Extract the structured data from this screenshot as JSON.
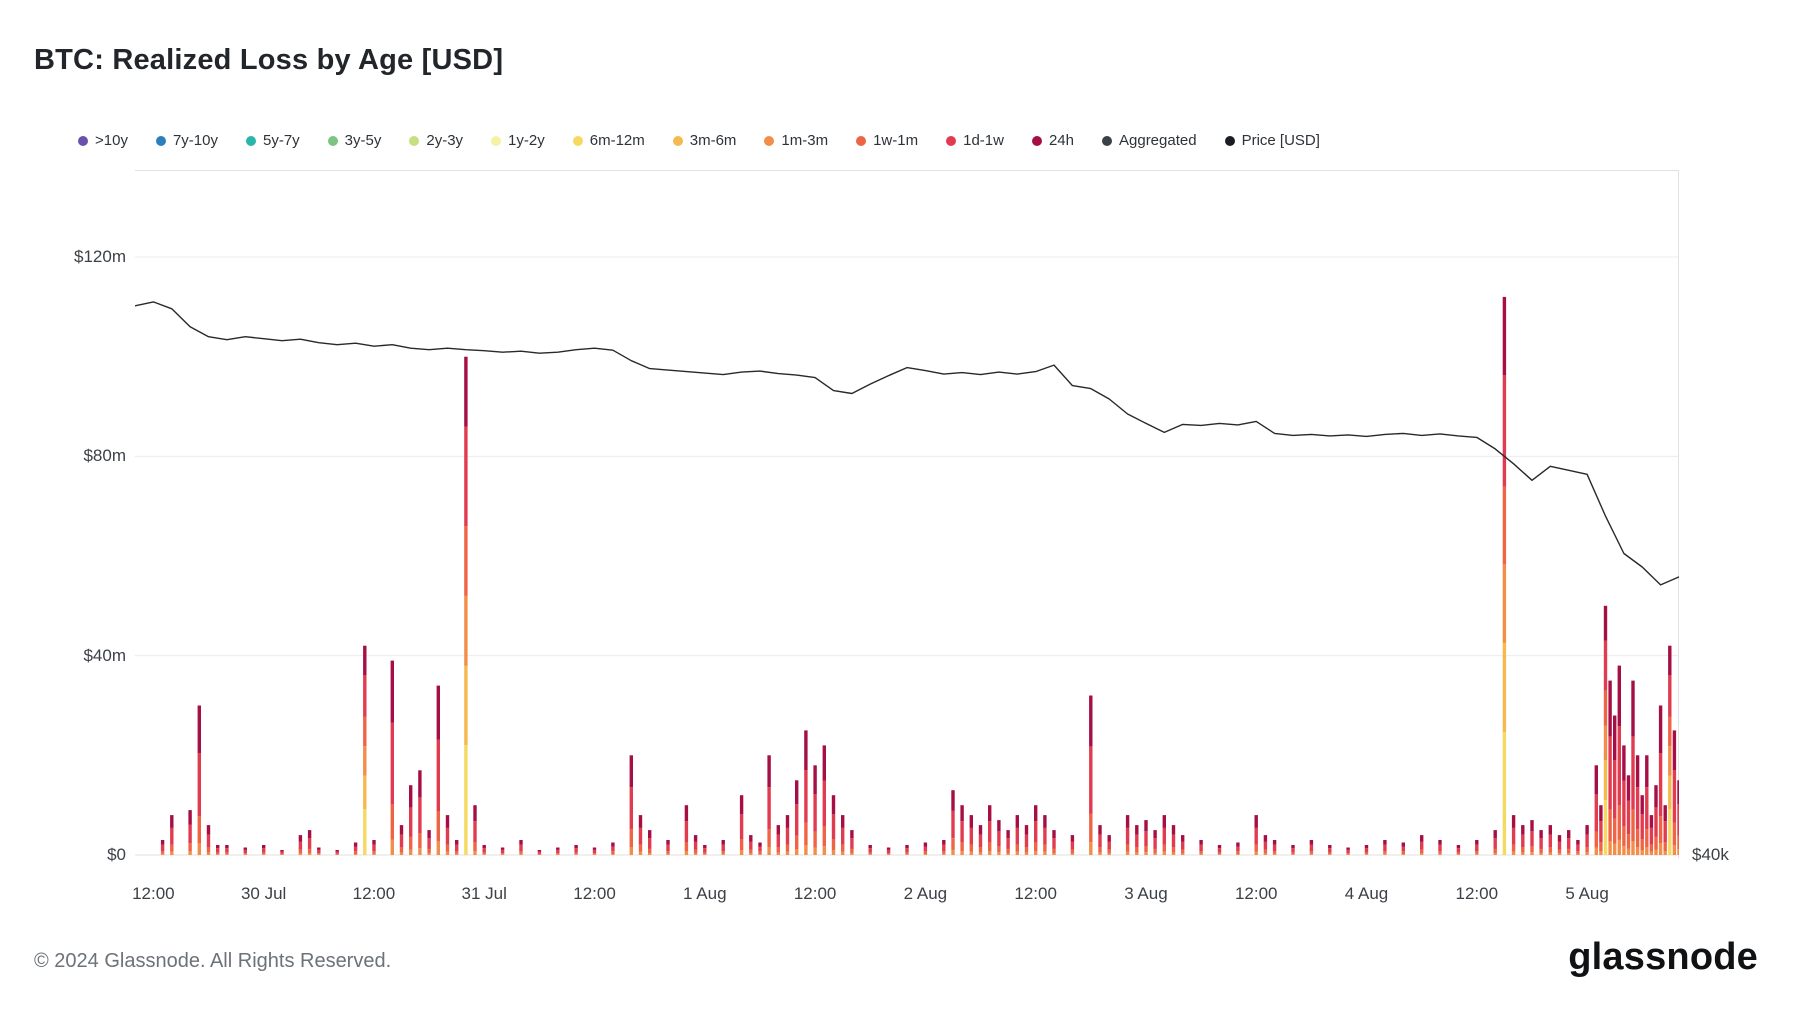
{
  "title": "BTC: Realized Loss by Age [USD]",
  "footer": {
    "copyright": "© 2024 Glassnode. All Rights Reserved.",
    "brand": "glassnode"
  },
  "legend": [
    {
      "label": ">10y",
      "color": "#6b51a9"
    },
    {
      "label": "7y-10y",
      "color": "#2e7ebc"
    },
    {
      "label": "5y-7y",
      "color": "#2ab5ab"
    },
    {
      "label": "3y-5y",
      "color": "#7cc47f"
    },
    {
      "label": "2y-3y",
      "color": "#c5e07e"
    },
    {
      "label": "1y-2y",
      "color": "#f6f2a4"
    },
    {
      "label": "6m-12m",
      "color": "#f5d960"
    },
    {
      "label": "3m-6m",
      "color": "#f5b950"
    },
    {
      "label": "1m-3m",
      "color": "#f28e49"
    },
    {
      "label": "1w-1m",
      "color": "#ee6445"
    },
    {
      "label": "1d-1w",
      "color": "#e13b4f"
    },
    {
      "label": "24h",
      "color": "#a60f45"
    },
    {
      "label": "Aggregated",
      "color": "#3a4149"
    },
    {
      "label": "Price [USD]",
      "color": "#1a1d21"
    }
  ],
  "chart_data": {
    "type": "composite",
    "title": "BTC: Realized Loss by Age [USD]",
    "units": "left axis: realized loss in USD millions; right axis: BTC price",
    "x_axis": {
      "domain_hours": [
        0,
        168
      ],
      "tick_hours": [
        2,
        14,
        26,
        38,
        50,
        62,
        74,
        86,
        98,
        110,
        122,
        134,
        146,
        158
      ],
      "tick_labels": [
        "12:00",
        "30 Jul",
        "12:00",
        "31 Jul",
        "12:00",
        "1 Aug",
        "12:00",
        "2 Aug",
        "12:00",
        "3 Aug",
        "12:00",
        "4 Aug",
        "12:00",
        "5 Aug"
      ]
    },
    "y_left": {
      "tick_values": [
        0,
        40,
        80,
        120
      ],
      "tick_labels": [
        "$0",
        "$40m",
        "$80m",
        "$120m"
      ],
      "lim": [
        0,
        137
      ]
    },
    "y_right": {
      "tick_labels": [
        "$40k"
      ]
    },
    "grid": true,
    "price_line": {
      "name": "Price [USD]",
      "type": "line",
      "color": "#26292e",
      "points_hour_value": [
        [
          0,
          110.2
        ],
        [
          2,
          111
        ],
        [
          4,
          109.6
        ],
        [
          6,
          106
        ],
        [
          8,
          104
        ],
        [
          10,
          103.4
        ],
        [
          12,
          104
        ],
        [
          14,
          103.6
        ],
        [
          16,
          103.2
        ],
        [
          18,
          103.5
        ],
        [
          20,
          102.8
        ],
        [
          22,
          102.4
        ],
        [
          24,
          102.7
        ],
        [
          26,
          102.1
        ],
        [
          28,
          102.4
        ],
        [
          30,
          101.7
        ],
        [
          32,
          101.4
        ],
        [
          34,
          101.7
        ],
        [
          36,
          101.4
        ],
        [
          38,
          101.2
        ],
        [
          40,
          100.9
        ],
        [
          42,
          101.1
        ],
        [
          44,
          100.7
        ],
        [
          46,
          100.9
        ],
        [
          48,
          101.4
        ],
        [
          50,
          101.7
        ],
        [
          52,
          101.3
        ],
        [
          54,
          99.2
        ],
        [
          56,
          97.6
        ],
        [
          58,
          97.3
        ],
        [
          60,
          97
        ],
        [
          62,
          96.7
        ],
        [
          64,
          96.4
        ],
        [
          66,
          96.9
        ],
        [
          68,
          97.1
        ],
        [
          70,
          96.6
        ],
        [
          72,
          96.3
        ],
        [
          74,
          95.8
        ],
        [
          76,
          93.2
        ],
        [
          78,
          92.6
        ],
        [
          80,
          94.5
        ],
        [
          82,
          96.2
        ],
        [
          84,
          97.8
        ],
        [
          86,
          97.2
        ],
        [
          88,
          96.5
        ],
        [
          90,
          96.8
        ],
        [
          92,
          96.4
        ],
        [
          94,
          96.9
        ],
        [
          96,
          96.5
        ],
        [
          98,
          97
        ],
        [
          100,
          98.3
        ],
        [
          102,
          94.2
        ],
        [
          104,
          93.6
        ],
        [
          106,
          91.5
        ],
        [
          108,
          88.5
        ],
        [
          110,
          86.6
        ],
        [
          112,
          84.8
        ],
        [
          114,
          86.4
        ],
        [
          116,
          86.2
        ],
        [
          118,
          86.6
        ],
        [
          120,
          86.3
        ],
        [
          122,
          87
        ],
        [
          124,
          84.6
        ],
        [
          126,
          84.2
        ],
        [
          128,
          84.4
        ],
        [
          130,
          84.1
        ],
        [
          132,
          84.3
        ],
        [
          134,
          84
        ],
        [
          136,
          84.4
        ],
        [
          138,
          84.6
        ],
        [
          140,
          84.2
        ],
        [
          142,
          84.5
        ],
        [
          144,
          84.1
        ],
        [
          146,
          83.8
        ],
        [
          148,
          81.5
        ],
        [
          150,
          78.5
        ],
        [
          152,
          75.2
        ],
        [
          154,
          78
        ],
        [
          156,
          77.2
        ],
        [
          158,
          76.4
        ],
        [
          160,
          68
        ],
        [
          162,
          60.5
        ],
        [
          164,
          57.8
        ],
        [
          166,
          54.2
        ],
        [
          168,
          55.8
        ]
      ]
    },
    "loss_bars": {
      "name": "Realized Loss by Age",
      "type": "bar",
      "stack_small": [
        [
          "1m-3m",
          0.08
        ],
        [
          "1w-1m",
          0.18
        ],
        [
          "1d-1w",
          0.42
        ],
        [
          "24h",
          0.32
        ]
      ],
      "stack_large": [
        [
          "6m-12m",
          0.22
        ],
        [
          "3m-6m",
          0.16
        ],
        [
          "1m-3m",
          0.14
        ],
        [
          "1w-1m",
          0.14
        ],
        [
          "1d-1w",
          0.2
        ],
        [
          "24h",
          0.14
        ]
      ],
      "points_hour_total": [
        [
          3,
          3
        ],
        [
          4,
          8
        ],
        [
          6,
          9
        ],
        [
          7,
          30
        ],
        [
          8,
          6
        ],
        [
          9,
          2
        ],
        [
          10,
          2
        ],
        [
          12,
          1.5
        ],
        [
          14,
          2
        ],
        [
          16,
          1
        ],
        [
          18,
          4
        ],
        [
          19,
          5
        ],
        [
          20,
          1.5
        ],
        [
          22,
          1
        ],
        [
          24,
          2.5
        ],
        [
          25,
          42
        ],
        [
          26,
          3
        ],
        [
          28,
          39
        ],
        [
          29,
          6
        ],
        [
          30,
          14
        ],
        [
          31,
          17
        ],
        [
          32,
          5
        ],
        [
          33,
          34
        ],
        [
          34,
          8
        ],
        [
          35,
          3
        ],
        [
          36,
          100
        ],
        [
          37,
          10
        ],
        [
          38,
          2
        ],
        [
          40,
          1.5
        ],
        [
          42,
          3
        ],
        [
          44,
          1
        ],
        [
          46,
          1.5
        ],
        [
          48,
          2
        ],
        [
          50,
          1.5
        ],
        [
          52,
          2.5
        ],
        [
          54,
          20
        ],
        [
          55,
          8
        ],
        [
          56,
          5
        ],
        [
          58,
          3
        ],
        [
          60,
          10
        ],
        [
          61,
          4
        ],
        [
          62,
          2
        ],
        [
          64,
          3
        ],
        [
          66,
          12
        ],
        [
          67,
          4
        ],
        [
          68,
          2.5
        ],
        [
          69,
          20
        ],
        [
          70,
          6
        ],
        [
          71,
          8
        ],
        [
          72,
          15
        ],
        [
          73,
          25
        ],
        [
          74,
          18
        ],
        [
          75,
          22
        ],
        [
          76,
          12
        ],
        [
          77,
          8
        ],
        [
          78,
          5
        ],
        [
          80,
          2
        ],
        [
          82,
          1.5
        ],
        [
          84,
          2
        ],
        [
          86,
          2.5
        ],
        [
          88,
          3
        ],
        [
          89,
          13
        ],
        [
          90,
          10
        ],
        [
          91,
          8
        ],
        [
          92,
          6
        ],
        [
          93,
          10
        ],
        [
          94,
          7
        ],
        [
          95,
          5
        ],
        [
          96,
          8
        ],
        [
          97,
          6
        ],
        [
          98,
          10
        ],
        [
          99,
          8
        ],
        [
          100,
          5
        ],
        [
          102,
          4
        ],
        [
          104,
          32
        ],
        [
          105,
          6
        ],
        [
          106,
          4
        ],
        [
          108,
          8
        ],
        [
          109,
          6
        ],
        [
          110,
          7
        ],
        [
          111,
          5
        ],
        [
          112,
          8
        ],
        [
          113,
          6
        ],
        [
          114,
          4
        ],
        [
          116,
          3
        ],
        [
          118,
          2
        ],
        [
          120,
          2.5
        ],
        [
          122,
          8
        ],
        [
          123,
          4
        ],
        [
          124,
          3
        ],
        [
          126,
          2
        ],
        [
          128,
          3
        ],
        [
          130,
          2
        ],
        [
          132,
          1.5
        ],
        [
          134,
          2
        ],
        [
          136,
          3
        ],
        [
          138,
          2.5
        ],
        [
          140,
          4
        ],
        [
          142,
          3
        ],
        [
          144,
          2
        ],
        [
          146,
          3
        ],
        [
          148,
          5
        ],
        [
          149,
          112
        ],
        [
          150,
          8
        ],
        [
          151,
          6
        ],
        [
          152,
          7
        ],
        [
          153,
          5
        ],
        [
          154,
          6
        ],
        [
          155,
          4
        ],
        [
          156,
          5
        ],
        [
          157,
          3
        ],
        [
          158,
          6
        ],
        [
          159,
          18
        ],
        [
          159.5,
          10
        ],
        [
          160,
          50
        ],
        [
          160.5,
          35
        ],
        [
          161,
          28
        ],
        [
          161.5,
          38
        ],
        [
          162,
          22
        ],
        [
          162.5,
          16
        ],
        [
          163,
          35
        ],
        [
          163.5,
          20
        ],
        [
          164,
          12
        ],
        [
          164.5,
          20
        ],
        [
          165,
          8
        ],
        [
          165.5,
          14
        ],
        [
          166,
          30
        ],
        [
          166.5,
          10
        ],
        [
          167,
          42
        ],
        [
          167.5,
          25
        ],
        [
          168,
          15
        ]
      ]
    }
  }
}
